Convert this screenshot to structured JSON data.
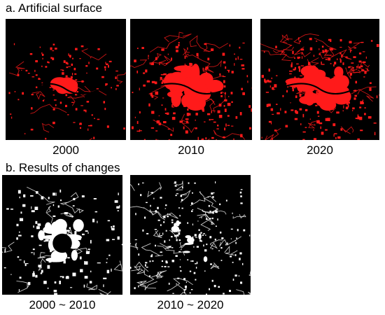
{
  "section_a": {
    "title": "a. Artificial surface",
    "panels": [
      {
        "label": "2000",
        "color": "#ff1a1a"
      },
      {
        "label": "2010",
        "color": "#ff1a1a"
      },
      {
        "label": "2020",
        "color": "#ff1a1a"
      }
    ]
  },
  "section_b": {
    "title": "b. Results of changes",
    "panels": [
      {
        "label": "2000 ~ 2010",
        "color": "#ffffff"
      },
      {
        "label": "2010 ~ 2020",
        "color": "#ffffff"
      }
    ]
  },
  "background_color": "#000000"
}
